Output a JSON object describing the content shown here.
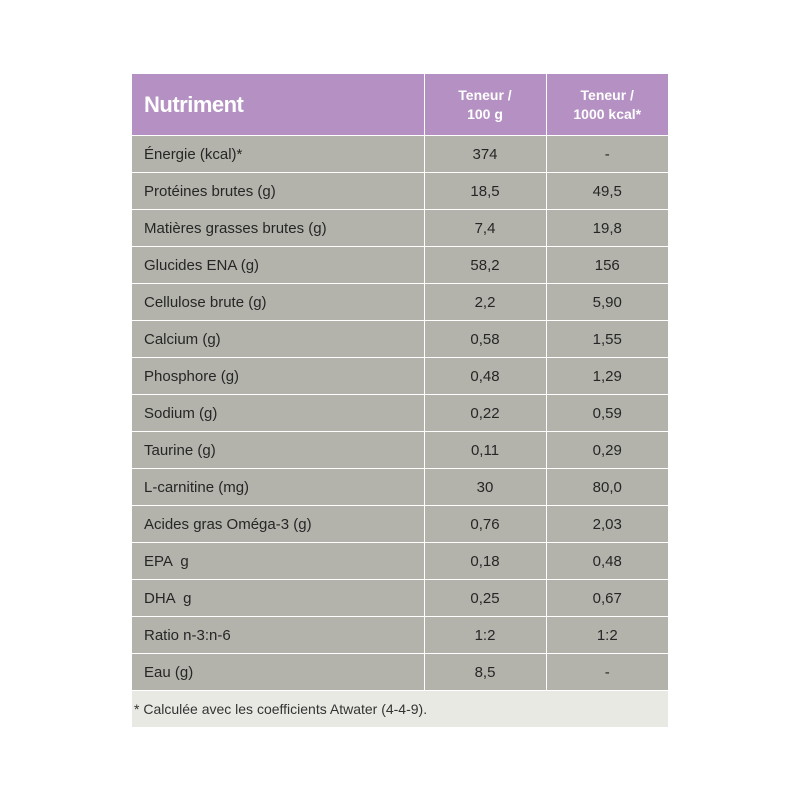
{
  "header": {
    "col1": "Nutriment",
    "col2_line1": "Teneur /",
    "col2_line2": "100 g",
    "col3_line1": "Teneur /",
    "col3_line2": "1000 kcal*"
  },
  "rows": [
    {
      "name": "Énergie (kcal)*",
      "per100g": "374",
      "per1000kcal": "-"
    },
    {
      "name": "Protéines brutes (g)",
      "per100g": "18,5",
      "per1000kcal": "49,5"
    },
    {
      "name": "Matières grasses brutes (g)",
      "per100g": "7,4",
      "per1000kcal": "19,8"
    },
    {
      "name": "Glucides ENA (g)",
      "per100g": "58,2",
      "per1000kcal": "156"
    },
    {
      "name": "Cellulose brute (g)",
      "per100g": "2,2",
      "per1000kcal": "5,90"
    },
    {
      "name": "Calcium (g)",
      "per100g": "0,58",
      "per1000kcal": "1,55"
    },
    {
      "name": "Phosphore (g)",
      "per100g": "0,48",
      "per1000kcal": "1,29"
    },
    {
      "name": "Sodium (g)",
      "per100g": "0,22",
      "per1000kcal": "0,59"
    },
    {
      "name": "Taurine (g)",
      "per100g": "0,11",
      "per1000kcal": "0,29"
    },
    {
      "name": "L-carnitine (mg)",
      "per100g": "30",
      "per1000kcal": "80,0"
    },
    {
      "name": "Acides gras Oméga-3 (g)",
      "per100g": "0,76",
      "per1000kcal": "2,03"
    },
    {
      "name": "EPA  g",
      "per100g": "0,18",
      "per1000kcal": "0,48"
    },
    {
      "name": "DHA  g",
      "per100g": "0,25",
      "per1000kcal": "0,67"
    },
    {
      "name": "Ratio n-3:n-6",
      "per100g": "1:2",
      "per1000kcal": "1:2"
    },
    {
      "name": "Eau (g)",
      "per100g": "8,5",
      "per1000kcal": "-"
    }
  ],
  "footnote": "* Calculée avec les coefficients Atwater (4-4-9).",
  "colors": {
    "header_bg": "#b491c2",
    "row_bg": "#b3b3ac",
    "footnote_bg": "#e9e9e4"
  }
}
